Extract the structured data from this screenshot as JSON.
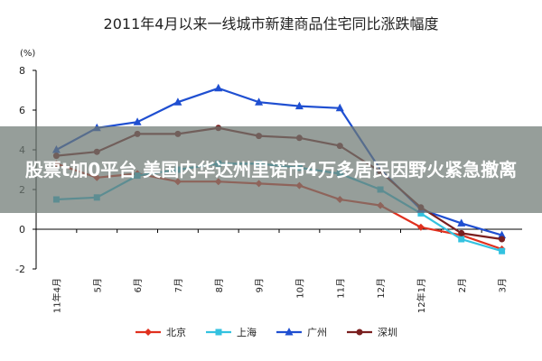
{
  "chart_data": {
    "type": "line",
    "title": "2011年4月以来一线城市新建商品住宅同比涨跌幅度",
    "y_label": "(%)",
    "categories": [
      "11年4月",
      "5月",
      "6月",
      "7月",
      "8月",
      "9月",
      "10月",
      "11月",
      "12月",
      "12年1月",
      "2月",
      "3月"
    ],
    "series": [
      {
        "name": "北京",
        "color": "#e0301e",
        "marker": "diamond",
        "values": [
          3.3,
          2.6,
          2.8,
          2.4,
          2.4,
          2.3,
          2.2,
          1.5,
          1.2,
          0.1,
          -0.3,
          -1.0
        ]
      },
      {
        "name": "上海",
        "color": "#33c2e0",
        "marker": "square",
        "values": [
          1.5,
          1.6,
          2.7,
          3.0,
          3.3,
          3.3,
          3.1,
          2.8,
          2.0,
          0.8,
          -0.5,
          -1.1
        ]
      },
      {
        "name": "广州",
        "color": "#1f4fd1",
        "marker": "triangle",
        "values": [
          4.0,
          5.1,
          5.4,
          6.4,
          7.1,
          6.4,
          6.2,
          6.1,
          3.0,
          1.0,
          0.3,
          -0.3
        ]
      },
      {
        "name": "深圳",
        "color": "#7a1f1f",
        "marker": "circle",
        "values": [
          3.7,
          3.9,
          4.8,
          4.8,
          5.1,
          4.7,
          4.6,
          4.2,
          2.9,
          1.1,
          -0.2,
          -0.5
        ]
      }
    ],
    "ylim": [
      -2,
      8
    ],
    "yticks": [
      -2,
      0,
      2,
      4,
      6,
      8
    ],
    "legend": "bottom"
  },
  "overlay": {
    "text": "股票t加0平台 美国内华达州里诺市4万多居民因野火紧急撤离"
  }
}
